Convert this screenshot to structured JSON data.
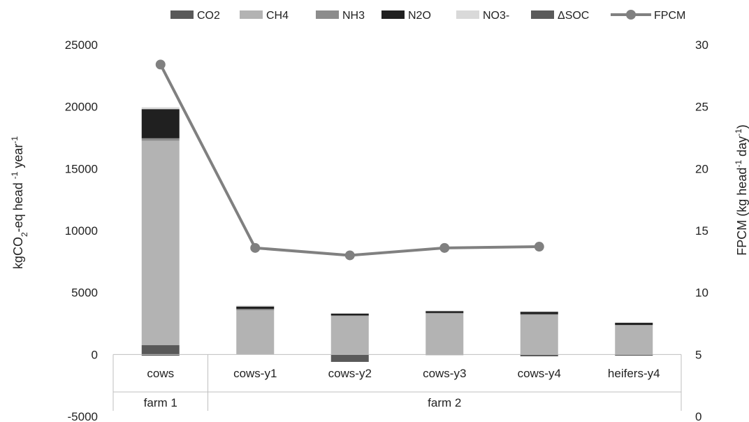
{
  "chart_data": {
    "type": "bar",
    "stacked": true,
    "categories": [
      "cows",
      "cows-y1",
      "cows-y2",
      "cows-y3",
      "cows-y4",
      "heifers-y4"
    ],
    "groups": [
      {
        "label": "farm 1",
        "categories": [
          "cows"
        ]
      },
      {
        "label": "farm 2",
        "categories": [
          "cows-y1",
          "cows-y2",
          "cows-y3",
          "cows-y4",
          "heifers-y4"
        ]
      }
    ],
    "series": [
      {
        "name": "CO2",
        "color": "#595959",
        "values": [
          750,
          20,
          0,
          0,
          0,
          0
        ]
      },
      {
        "name": "CH4",
        "color": "#b3b3b3",
        "values": [
          16500,
          3550,
          3100,
          3300,
          3200,
          2350
        ]
      },
      {
        "name": "NH3",
        "color": "#8c8c8c",
        "values": [
          200,
          100,
          50,
          50,
          50,
          30
        ]
      },
      {
        "name": "N2O",
        "color": "#202020",
        "values": [
          2350,
          200,
          150,
          150,
          200,
          180
        ]
      },
      {
        "name": "NO3-",
        "color": "#d9d9d9",
        "values": [
          150,
          80,
          30,
          30,
          20,
          20
        ]
      },
      {
        "name": "ΔSOC",
        "color": "#5a5a5a",
        "values": [
          -100,
          0,
          -600,
          -50,
          -150,
          -100
        ]
      }
    ],
    "line_series": {
      "name": "FPCM",
      "color": "#808080",
      "axis": "right",
      "values": [
        28.4,
        13.6,
        13.0,
        13.6,
        13.7,
        null
      ]
    },
    "y_left": {
      "label": "kgCO2-eq head-1 year-1",
      "label_main": "kgCO",
      "label_sub1": "2",
      "label_mid": "-eq  head ",
      "label_sup1": "-1",
      "label_end": " year",
      "label_sup2": "-1",
      "min": -5000,
      "max": 25000,
      "ticks": [
        "25000",
        "20000",
        "15000",
        "10000",
        "5000",
        "0",
        "-5000"
      ]
    },
    "y_right": {
      "label": "FPCM (kg head-1 day-1)",
      "label_main": "FPCM (kg head",
      "label_sup1": "-1",
      "label_mid": " day",
      "label_sup2": "-1",
      "label_end": ")",
      "min": 0,
      "max": 30,
      "ticks": [
        "30",
        "25",
        "20",
        "15",
        "10",
        "5",
        "0"
      ]
    },
    "legend_position": "top"
  }
}
